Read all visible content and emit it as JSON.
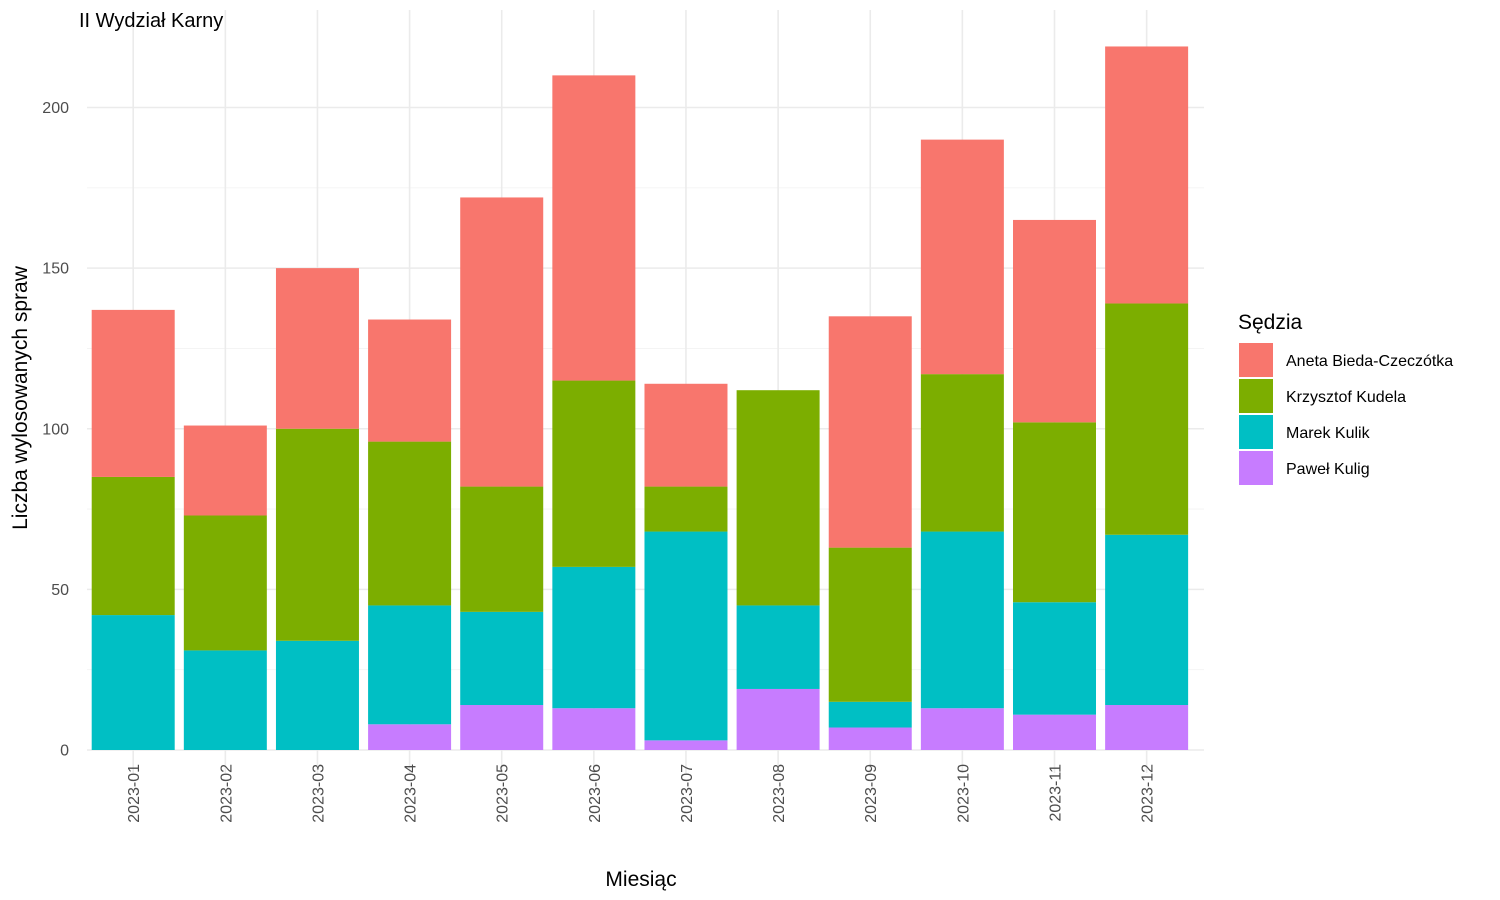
{
  "chart_data": {
    "type": "bar",
    "stacked": true,
    "title": "II Wydział Karny",
    "xlabel": "Miesiąc",
    "ylabel": "Liczba wylosowanych spraw",
    "ylim": [
      0,
      220
    ],
    "yticks": [
      0,
      50,
      100,
      150,
      200
    ],
    "grid": true,
    "legend_position": "right",
    "legend_title": "Sędzia",
    "categories": [
      "2023-01",
      "2023-02",
      "2023-03",
      "2023-04",
      "2023-05",
      "2023-06",
      "2023-07",
      "2023-08",
      "2023-09",
      "2023-10",
      "2023-11",
      "2023-12"
    ],
    "series": [
      {
        "name": "Paweł Kulig",
        "color": "#C77CFF",
        "values": [
          0,
          0,
          0,
          8,
          14,
          13,
          3,
          19,
          7,
          13,
          11,
          14
        ]
      },
      {
        "name": "Marek Kulik",
        "color": "#00BFC4",
        "values": [
          42,
          31,
          34,
          37,
          29,
          44,
          65,
          26,
          8,
          55,
          35,
          53
        ]
      },
      {
        "name": "Krzysztof Kudela",
        "color": "#7CAE00",
        "values": [
          43,
          42,
          66,
          51,
          39,
          58,
          14,
          67,
          48,
          49,
          56,
          72
        ]
      },
      {
        "name": "Aneta Bieda-Czeczótka",
        "color": "#F8766D",
        "values": [
          52,
          28,
          50,
          38,
          90,
          95,
          32,
          0,
          72,
          73,
          63,
          80
        ]
      }
    ],
    "legend_order": [
      "Aneta Bieda-Czeczótka",
      "Krzysztof Kudela",
      "Marek Kulik",
      "Paweł Kulig"
    ]
  }
}
